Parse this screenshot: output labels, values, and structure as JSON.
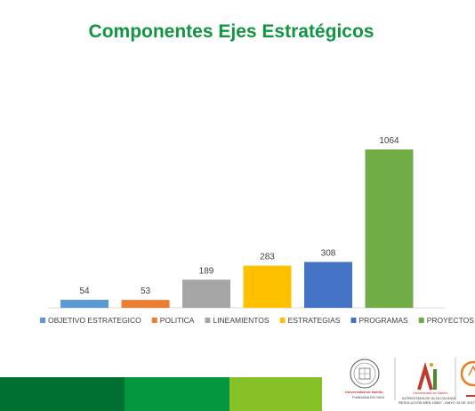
{
  "colors": {
    "title": "#119541",
    "footer": [
      "#006f32",
      "#05973f",
      "#86c226"
    ],
    "label": "#404040",
    "axis": "#d9d9d9"
  },
  "chart_data": {
    "type": "bar",
    "title": "Componentes Ejes Estratégicos",
    "series": [
      {
        "name": "OBJETIVO ESTRATEGICO",
        "value": 54,
        "color": "#5b9bd5"
      },
      {
        "name": "POLITICA",
        "value": 53,
        "color": "#ed7d31"
      },
      {
        "name": "LINEAMIENTOS",
        "value": 189,
        "color": "#a5a5a5"
      },
      {
        "name": "ESTRATEGIAS",
        "value": 283,
        "color": "#ffc000"
      },
      {
        "name": "PROGRAMAS",
        "value": 308,
        "color": "#4472c4"
      },
      {
        "name": "PROYECTOS",
        "value": 1064,
        "color": "#70ad47"
      }
    ],
    "legend_position": "bottom",
    "grid": false,
    "ylim": [
      0,
      1100
    ]
  },
  "logos": {
    "university": "Universidad de Nariño",
    "university_sub": "FUNDADA EN 1904",
    "ai_letters": "ai",
    "ai_university": "Universidad de Nariño",
    "ai_line1": "ACREDITADA DE ALTA CALIDAD",
    "ai_line2": "RESOLUCIÓN MEN 10567 - MAYO 19 DE 2017"
  }
}
